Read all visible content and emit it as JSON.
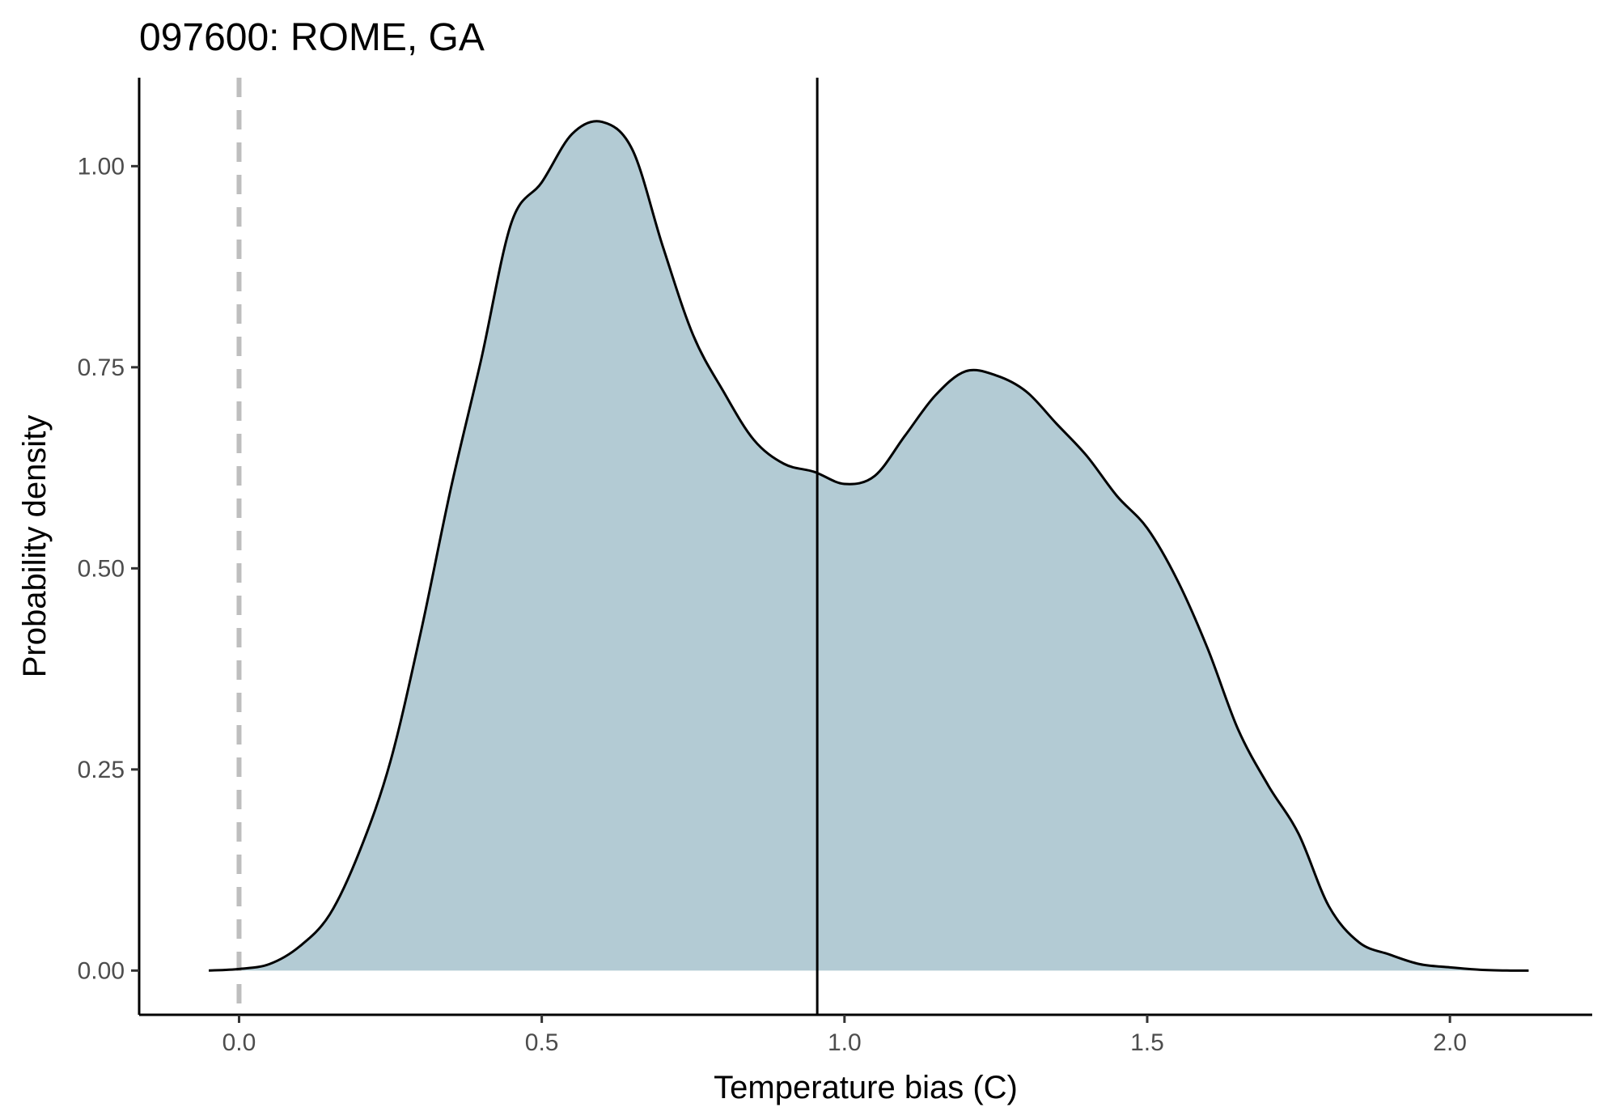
{
  "chart_data": {
    "type": "area",
    "title": "097600: ROME, GA",
    "xlabel": "Temperature bias (C)",
    "ylabel": "Probability density",
    "xlim": [
      -0.165,
      2.235
    ],
    "ylim": [
      -0.055,
      1.11
    ],
    "x_ticks": [
      0.0,
      0.5,
      1.0,
      1.5,
      2.0
    ],
    "x_tick_labels": [
      "0.0",
      "0.5",
      "1.0",
      "1.5",
      "2.0"
    ],
    "y_ticks": [
      0.0,
      0.25,
      0.5,
      0.75,
      1.0
    ],
    "y_tick_labels": [
      "0.00",
      "0.25",
      "0.50",
      "0.75",
      "1.00"
    ],
    "grid": false,
    "fill_color": "#b3cbd4",
    "line_color": "#000000",
    "reference_lines": [
      {
        "x": 0.0,
        "style": "dashed",
        "color": "#bebebe"
      },
      {
        "x": 0.955,
        "style": "solid",
        "color": "#000000"
      }
    ],
    "series": [
      {
        "x": [
          -0.05,
          0.0,
          0.05,
          0.1,
          0.15,
          0.2,
          0.25,
          0.3,
          0.35,
          0.4,
          0.45,
          0.5,
          0.55,
          0.6,
          0.65,
          0.7,
          0.75,
          0.8,
          0.85,
          0.9,
          0.95,
          1.0,
          1.05,
          1.1,
          1.15,
          1.2,
          1.25,
          1.3,
          1.35,
          1.4,
          1.45,
          1.5,
          1.55,
          1.6,
          1.65,
          1.7,
          1.75,
          1.8,
          1.85,
          1.9,
          1.95,
          2.0,
          2.05,
          2.1,
          2.13
        ],
        "y": [
          0.0,
          0.002,
          0.008,
          0.03,
          0.07,
          0.15,
          0.26,
          0.42,
          0.6,
          0.76,
          0.93,
          0.98,
          1.04,
          1.055,
          1.02,
          0.9,
          0.79,
          0.72,
          0.66,
          0.63,
          0.62,
          0.605,
          0.615,
          0.665,
          0.715,
          0.745,
          0.74,
          0.72,
          0.68,
          0.64,
          0.59,
          0.55,
          0.485,
          0.4,
          0.3,
          0.23,
          0.17,
          0.08,
          0.035,
          0.02,
          0.008,
          0.004,
          0.001,
          0.0,
          0.0
        ]
      }
    ]
  }
}
